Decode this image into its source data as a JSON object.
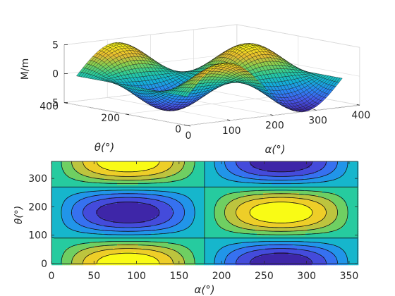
{
  "chart_data": [
    {
      "type": "surface",
      "function": "M = 5*sin(alpha)*cos(theta)",
      "x": {
        "label": "α(°)",
        "ticks": [
          0,
          100,
          200,
          300,
          400
        ],
        "lim": [
          0,
          360
        ]
      },
      "y": {
        "label": "θ(°)",
        "ticks": [
          0,
          200,
          400
        ],
        "lim": [
          0,
          360
        ]
      },
      "z": {
        "label": "M/m",
        "ticks": [
          -5,
          0,
          5
        ],
        "lim": [
          -5,
          5
        ]
      },
      "grid": true,
      "colormap": "parula"
    },
    {
      "type": "contour",
      "function": "M = 5*sin(alpha)*cos(theta)",
      "x": {
        "label": "α(°)",
        "ticks": [
          0,
          50,
          100,
          150,
          200,
          250,
          300,
          350
        ],
        "lim": [
          0,
          360
        ]
      },
      "y": {
        "label": "θ(°)",
        "ticks": [
          0,
          100,
          200,
          300
        ],
        "lim": [
          0,
          360
        ]
      },
      "levels": [
        -4,
        -3,
        -2,
        -1,
        0,
        1,
        2,
        3,
        4
      ],
      "colormap": "parula"
    }
  ]
}
